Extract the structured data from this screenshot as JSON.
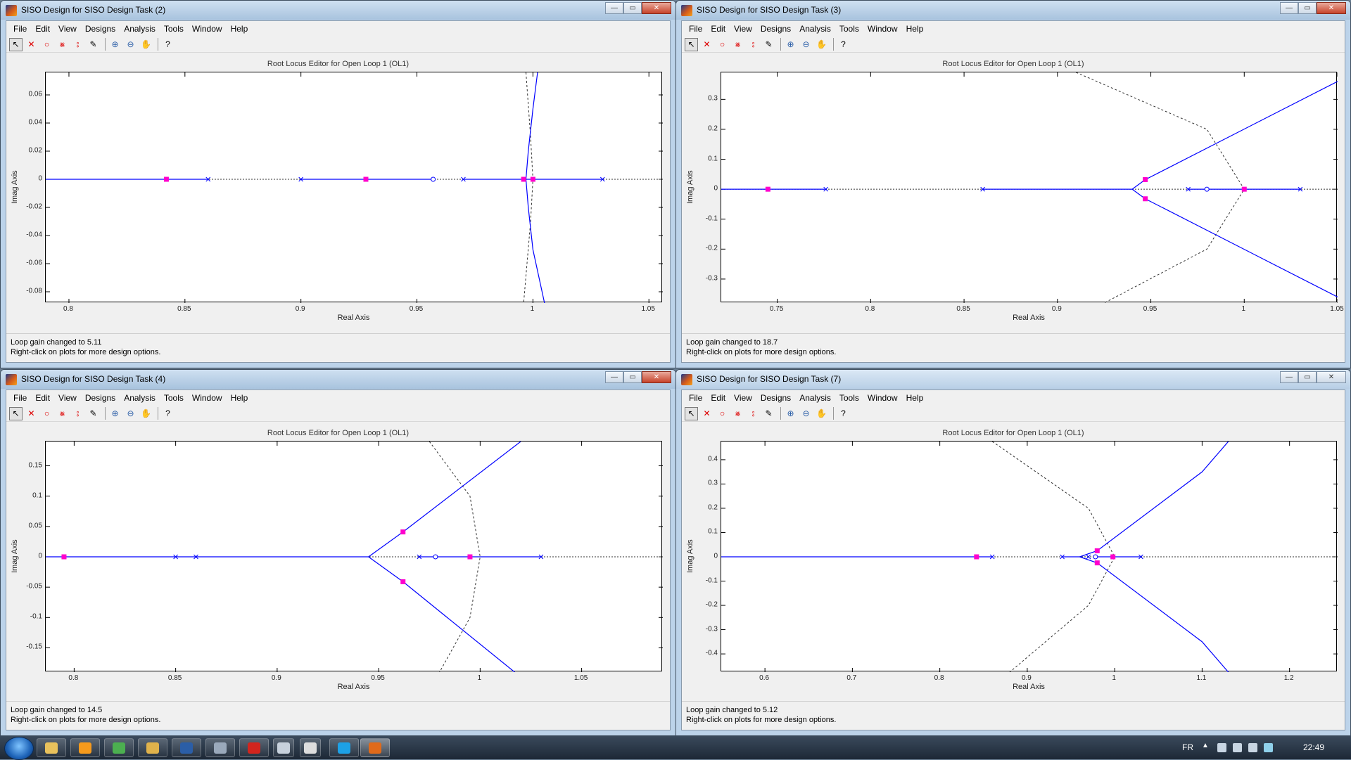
{
  "menu": [
    "File",
    "Edit",
    "View",
    "Designs",
    "Analysis",
    "Tools",
    "Window",
    "Help"
  ],
  "window_buttons": {
    "minimize": "—",
    "maximize": "▭",
    "close": "✕"
  },
  "windows": [
    {
      "title": "SISO Design for SISO Design Task (2)",
      "plot_title": "Root Locus Editor for Open Loop 1 (OL1)",
      "status1": "Loop gain changed to 5.11",
      "status2": "Right-click on plots for more design options.",
      "xlabel": "Real Axis",
      "ylabel": "Imag Axis",
      "xtick_labels": [
        "0.8",
        "0.85",
        "0.9",
        "0.95",
        "1",
        "1.05"
      ],
      "ytick_labels": [
        "0.06",
        "0.04",
        "0.02",
        "0",
        "-0.02",
        "-0.04",
        "-0.06",
        "-0.08"
      ]
    },
    {
      "title": "SISO Design for SISO Design Task (3)",
      "plot_title": "Root Locus Editor for Open Loop 1 (OL1)",
      "status1": "Loop gain changed to 18.7",
      "status2": "Right-click on plots for more design options.",
      "xlabel": "Real Axis",
      "ylabel": "Imag Axis",
      "xtick_labels": [
        "0.75",
        "0.8",
        "0.85",
        "0.9",
        "0.95",
        "1",
        "1.05"
      ],
      "ytick_labels": [
        "0.3",
        "0.2",
        "0.1",
        "0",
        "-0.1",
        "-0.2",
        "-0.3"
      ]
    },
    {
      "title": "SISO Design for SISO Design Task (4)",
      "plot_title": "Root Locus Editor for Open Loop 1 (OL1)",
      "status1": "Loop gain changed to 14.5",
      "status2": "Right-click on plots for more design options.",
      "xlabel": "Real Axis",
      "ylabel": "Imag Axis",
      "xtick_labels": [
        "0.8",
        "0.85",
        "0.9",
        "0.95",
        "1",
        "1.05"
      ],
      "ytick_labels": [
        "0.15",
        "0.1",
        "0.05",
        "0",
        "-0.05",
        "-0.1",
        "-0.15"
      ]
    },
    {
      "title": "SISO Design for SISO Design Task (7)",
      "plot_title": "Root Locus Editor for Open Loop 1 (OL1)",
      "status1": "Loop gain changed to 5.12",
      "status2": "Right-click on plots for more design options.",
      "xlabel": "Real Axis",
      "ylabel": "Imag Axis",
      "xtick_labels": [
        "0.6",
        "0.7",
        "0.8",
        "0.9",
        "1",
        "1.1",
        "1.2"
      ],
      "ytick_labels": [
        "0.4",
        "0.3",
        "0.2",
        "0.1",
        "0",
        "-0.1",
        "-0.2",
        "-0.3",
        "-0.4"
      ]
    }
  ],
  "chart_data": [
    {
      "type": "scatter",
      "title": "Root Locus Editor for Open Loop 1 (OL1)",
      "xlabel": "Real Axis",
      "ylabel": "Imag Axis",
      "xlim": [
        0.79,
        1.056
      ],
      "ylim": [
        -0.088,
        0.076
      ],
      "xticks": [
        0.8,
        0.85,
        0.9,
        0.95,
        1,
        1.05
      ],
      "yticks": [
        0.06,
        0.04,
        0.02,
        0,
        -0.02,
        -0.04,
        -0.06,
        -0.08
      ],
      "poles": [
        0.86,
        0.9,
        0.97,
        1.0,
        1.03
      ],
      "zeros": [
        0.957
      ],
      "closed_loop_poles": [
        [
          0.842,
          0
        ],
        [
          0.928,
          0
        ],
        [
          0.996,
          0
        ],
        [
          1.0,
          0
        ]
      ],
      "locus_real_segments": [
        [
          0.79,
          0.86
        ],
        [
          0.9,
          0.957
        ],
        [
          0.97,
          1.03
        ]
      ],
      "locus_branches": [
        [
          [
            1.002,
            0.076
          ],
          [
            1.0,
            0.05
          ],
          [
            0.998,
            0.02
          ],
          [
            0.997,
            0
          ],
          [
            0.998,
            -0.02
          ],
          [
            1.0,
            -0.05
          ],
          [
            1.005,
            -0.088
          ]
        ]
      ],
      "grid_curves": [
        [
          [
            0.997,
            0.076
          ],
          [
            0.999,
            0.03
          ],
          [
            1.0,
            0
          ],
          [
            0.999,
            -0.03
          ],
          [
            0.996,
            -0.088
          ]
        ]
      ]
    },
    {
      "type": "scatter",
      "title": "Root Locus Editor for Open Loop 1 (OL1)",
      "xlabel": "Real Axis",
      "ylabel": "Imag Axis",
      "xlim": [
        0.72,
        1.05
      ],
      "ylim": [
        -0.38,
        0.39
      ],
      "xticks": [
        0.75,
        0.8,
        0.85,
        0.9,
        0.95,
        1,
        1.05
      ],
      "yticks": [
        0.3,
        0.2,
        0.1,
        0,
        -0.1,
        -0.2,
        -0.3
      ],
      "poles": [
        0.776,
        0.86,
        0.97,
        1.03
      ],
      "zeros": [
        0.98
      ],
      "closed_loop_poles": [
        [
          0.745,
          0
        ],
        [
          0.947,
          0.032
        ],
        [
          0.947,
          -0.032
        ],
        [
          1.0,
          0
        ]
      ],
      "locus_real_segments": [
        [
          0.72,
          0.776
        ],
        [
          0.86,
          0.94
        ],
        [
          0.97,
          1.03
        ]
      ],
      "locus_branches": [
        [
          [
            0.94,
            0
          ],
          [
            0.947,
            0.032
          ],
          [
            1.05,
            0.36
          ]
        ],
        [
          [
            0.94,
            0
          ],
          [
            0.947,
            -0.032
          ],
          [
            1.05,
            -0.36
          ]
        ]
      ],
      "grid_curves": [
        [
          [
            0.91,
            0.39
          ],
          [
            0.98,
            0.2
          ],
          [
            1.0,
            0
          ],
          [
            0.98,
            -0.2
          ],
          [
            0.925,
            -0.38
          ]
        ]
      ]
    },
    {
      "type": "scatter",
      "title": "Root Locus Editor for Open Loop 1 (OL1)",
      "xlabel": "Real Axis",
      "ylabel": "Imag Axis",
      "xlim": [
        0.786,
        1.09
      ],
      "ylim": [
        -0.19,
        0.19
      ],
      "xticks": [
        0.8,
        0.85,
        0.9,
        0.95,
        1,
        1.05
      ],
      "yticks": [
        0.15,
        0.1,
        0.05,
        0,
        -0.05,
        -0.1,
        -0.15
      ],
      "poles": [
        0.85,
        0.86,
        0.97,
        1.03
      ],
      "zeros": [
        0.978
      ],
      "closed_loop_poles": [
        [
          0.795,
          0
        ],
        [
          0.962,
          0.041
        ],
        [
          0.962,
          -0.041
        ],
        [
          0.995,
          0
        ]
      ],
      "locus_real_segments": [
        [
          0.786,
          0.945
        ],
        [
          0.97,
          1.03
        ]
      ],
      "locus_branches": [
        [
          [
            0.945,
            0
          ],
          [
            0.962,
            0.041
          ],
          [
            1.02,
            0.19
          ]
        ],
        [
          [
            0.945,
            0
          ],
          [
            0.962,
            -0.041
          ],
          [
            1.017,
            -0.19
          ]
        ]
      ],
      "grid_curves": [
        [
          [
            0.975,
            0.19
          ],
          [
            0.995,
            0.1
          ],
          [
            1.0,
            0
          ],
          [
            0.995,
            -0.1
          ],
          [
            0.98,
            -0.19
          ]
        ]
      ]
    },
    {
      "type": "scatter",
      "title": "Root Locus Editor for Open Loop 1 (OL1)",
      "xlabel": "Real Axis",
      "ylabel": "Imag Axis",
      "xlim": [
        0.55,
        1.255
      ],
      "ylim": [
        -0.475,
        0.475
      ],
      "xticks": [
        0.6,
        0.7,
        0.8,
        0.9,
        1,
        1.1,
        1.2
      ],
      "yticks": [
        0.4,
        0.3,
        0.2,
        0.1,
        0,
        -0.1,
        -0.2,
        -0.3,
        -0.4
      ],
      "poles": [
        0.86,
        0.94,
        0.97,
        1.03
      ],
      "zeros": [
        0.978
      ],
      "closed_loop_poles": [
        [
          0.842,
          0
        ],
        [
          0.98,
          0.025
        ],
        [
          0.98,
          -0.025
        ],
        [
          0.998,
          0
        ]
      ],
      "locus_real_segments": [
        [
          0.55,
          0.86
        ],
        [
          0.94,
          0.96
        ],
        [
          0.98,
          1.03
        ]
      ],
      "locus_branches": [
        [
          [
            0.96,
            0
          ],
          [
            0.98,
            0.025
          ],
          [
            1.1,
            0.35
          ],
          [
            1.13,
            0.475
          ]
        ],
        [
          [
            0.96,
            0
          ],
          [
            0.98,
            -0.025
          ],
          [
            1.1,
            -0.35
          ],
          [
            1.13,
            -0.475
          ]
        ]
      ],
      "grid_curves": [
        [
          [
            0.86,
            0.475
          ],
          [
            0.97,
            0.2
          ],
          [
            1.0,
            0
          ],
          [
            0.97,
            -0.2
          ],
          [
            0.88,
            -0.475
          ]
        ]
      ]
    }
  ],
  "taskbar": {
    "items": [
      {
        "icon": "explorer-icon",
        "color": "#e8c15c"
      },
      {
        "icon": "media-player-icon",
        "color": "#f59a1c"
      },
      {
        "icon": "chrome-icon",
        "color": "#4caf50"
      },
      {
        "icon": "folder-icon",
        "color": "#e0b24b"
      },
      {
        "icon": "app-icon",
        "color": "#2b5ea7"
      },
      {
        "icon": "monitor-icon",
        "color": "#9aa9bb"
      },
      {
        "icon": "pdf-icon",
        "color": "#d3251e"
      },
      {
        "icon": "device-icon",
        "color": "#c7d1dc"
      },
      {
        "icon": "usb-icon",
        "color": "#dddddd"
      },
      {
        "icon": "skype-icon",
        "color": "#1da1e6"
      },
      {
        "icon": "matlab-icon",
        "color": "#e06a1a"
      }
    ],
    "lang": "FR",
    "clock": "22:49"
  }
}
